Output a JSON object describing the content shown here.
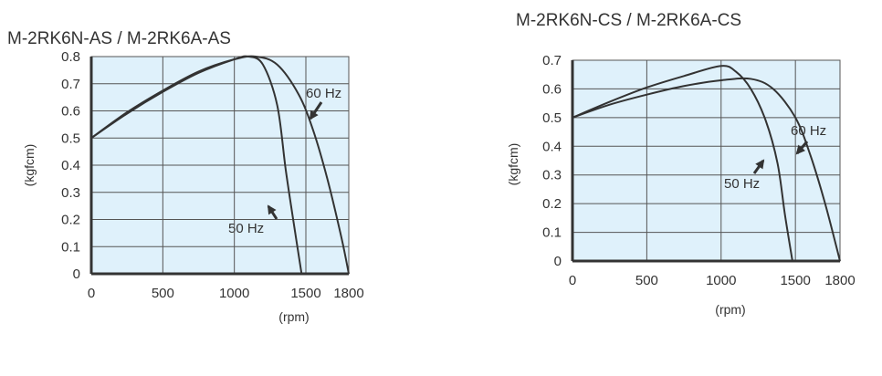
{
  "chart_data": [
    {
      "type": "line",
      "title": "M-2RK6N-AS  /  M-2RK6A-AS",
      "xlabel": "(rpm)",
      "ylabel": "(kgfcm)",
      "xlim": [
        0,
        1800
      ],
      "ylim": [
        0,
        0.8
      ],
      "xticks": [
        "0",
        "500",
        "1000",
        "1500",
        "1800"
      ],
      "yticks": [
        "0",
        "0.1",
        "0.2",
        "0.3",
        "0.4",
        "0.5",
        "0.6",
        "0.7",
        "0.8"
      ],
      "grid": true,
      "series": [
        {
          "name": "50 Hz",
          "x": [
            0,
            250,
            500,
            750,
            1000,
            1100,
            1200,
            1300,
            1360,
            1420,
            1470
          ],
          "y": [
            0.5,
            0.59,
            0.67,
            0.74,
            0.79,
            0.8,
            0.77,
            0.62,
            0.38,
            0.17,
            0
          ]
        },
        {
          "name": "60 Hz",
          "x": [
            0,
            250,
            500,
            750,
            1000,
            1150,
            1300,
            1450,
            1550,
            1650,
            1750,
            1800
          ],
          "y": [
            0.5,
            0.595,
            0.675,
            0.745,
            0.79,
            0.8,
            0.77,
            0.66,
            0.53,
            0.35,
            0.13,
            0
          ]
        }
      ],
      "annotations": [
        {
          "text": "60 Hz",
          "series": "60 Hz"
        },
        {
          "text": "50 Hz",
          "series": "50 Hz"
        }
      ]
    },
    {
      "type": "line",
      "title": "M-2RK6N-CS  /  M-2RK6A-CS",
      "xlabel": "(rpm)",
      "ylabel": "(kgfcm)",
      "xlim": [
        0,
        1800
      ],
      "ylim": [
        0,
        0.7
      ],
      "xticks": [
        "0",
        "500",
        "1000",
        "1500",
        "1800"
      ],
      "yticks": [
        "0",
        "0.1",
        "0.2",
        "0.3",
        "0.4",
        "0.5",
        "0.6",
        "0.7"
      ],
      "grid": true,
      "series": [
        {
          "name": "50 Hz",
          "x": [
            0,
            250,
            500,
            750,
            1000,
            1100,
            1200,
            1300,
            1380,
            1430,
            1480
          ],
          "y": [
            0.5,
            0.555,
            0.605,
            0.645,
            0.68,
            0.66,
            0.6,
            0.49,
            0.34,
            0.16,
            0
          ]
        },
        {
          "name": "60 Hz",
          "x": [
            0,
            250,
            500,
            750,
            1000,
            1200,
            1350,
            1500,
            1600,
            1700,
            1800
          ],
          "y": [
            0.5,
            0.545,
            0.58,
            0.61,
            0.63,
            0.635,
            0.6,
            0.5,
            0.37,
            0.2,
            0
          ]
        }
      ],
      "annotations": [
        {
          "text": "60 Hz",
          "series": "60 Hz"
        },
        {
          "text": "50 Hz",
          "series": "50 Hz"
        }
      ]
    }
  ]
}
